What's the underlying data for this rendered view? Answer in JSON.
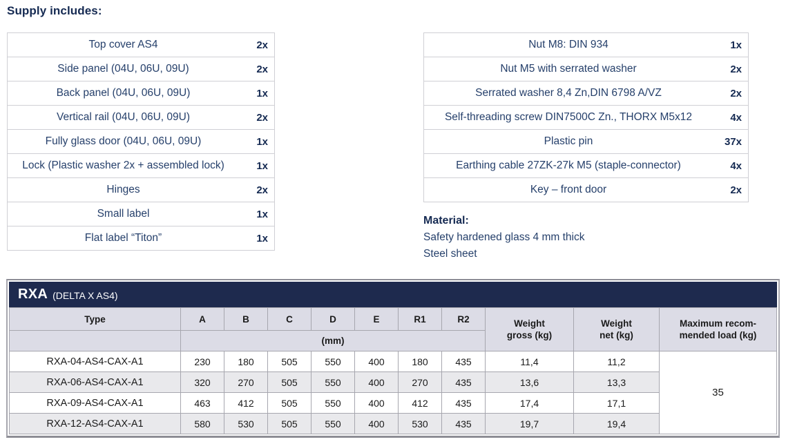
{
  "page": {
    "heading": "Supply includes:"
  },
  "supply_left": {
    "rows": [
      {
        "label": "Top cover AS4",
        "qty": "2x"
      },
      {
        "label": "Side panel (04U, 06U, 09U)",
        "qty": "2x"
      },
      {
        "label": "Back panel (04U, 06U, 09U)",
        "qty": "1x"
      },
      {
        "label": "Vertical rail (04U, 06U, 09U)",
        "qty": "2x"
      },
      {
        "label": "Fully glass door (04U, 06U, 09U)",
        "qty": "1x"
      },
      {
        "label": "Lock (Plastic washer 2x + assembled lock)",
        "qty": "1x"
      },
      {
        "label": "Hinges",
        "qty": "2x"
      },
      {
        "label": "Small label",
        "qty": "1x"
      },
      {
        "label": "Flat label “Titon”",
        "qty": "1x"
      }
    ]
  },
  "supply_right": {
    "rows": [
      {
        "label": "Nut M8: DIN 934",
        "qty": "1x"
      },
      {
        "label": "Nut M5 with serrated washer",
        "qty": "2x"
      },
      {
        "label": "Serrated washer 8,4 Zn,DIN 6798 A/VZ",
        "qty": "2x"
      },
      {
        "label": "Self-threading screw DIN7500C Zn., THORX M5x12",
        "qty": "4x"
      },
      {
        "label": "Plastic pin",
        "qty": "37x"
      },
      {
        "label": "Earthing cable 27ZK-27k M5 (staple-connector)",
        "qty": "4x"
      },
      {
        "label": "Key – front door",
        "qty": "2x"
      }
    ]
  },
  "material": {
    "heading": "Material:",
    "lines": [
      "Safety hardened glass 4 mm thick",
      "Steel sheet"
    ]
  },
  "spec_table": {
    "title": "RXA",
    "subtitle": "(DELTA X AS4)",
    "columns": [
      "Type",
      "A",
      "B",
      "C",
      "D",
      "E",
      "R1",
      "R2"
    ],
    "unit_label": "(mm)",
    "weight_gross_header": {
      "line1": "Weight",
      "line2": "gross (kg)"
    },
    "weight_net_header": {
      "line1": "Weight",
      "line2": "net (kg)"
    },
    "max_load_header": {
      "line1": "Maximum recom-",
      "line2": "mended load (kg)"
    },
    "rows": [
      {
        "type": "RXA-04-AS4-CAX-A1",
        "a": "230",
        "b": "180",
        "c": "505",
        "d": "550",
        "e": "400",
        "r1": "180",
        "r2": "435",
        "weight_gross": "11,4",
        "weight_net": "11,2"
      },
      {
        "type": "RXA-06-AS4-CAX-A1",
        "a": "320",
        "b": "270",
        "c": "505",
        "d": "550",
        "e": "400",
        "r1": "270",
        "r2": "435",
        "weight_gross": "13,6",
        "weight_net": "13,3"
      },
      {
        "type": "RXA-09-AS4-CAX-A1",
        "a": "463",
        "b": "412",
        "c": "505",
        "d": "550",
        "e": "400",
        "r1": "412",
        "r2": "435",
        "weight_gross": "17,4",
        "weight_net": "17,1"
      },
      {
        "type": "RXA-12-AS4-CAX-A1",
        "a": "580",
        "b": "530",
        "c": "505",
        "d": "550",
        "e": "400",
        "r1": "530",
        "r2": "435",
        "weight_gross": "19,7",
        "weight_net": "19,4"
      }
    ],
    "max_load_value": "35"
  },
  "colors": {
    "accent_navy": "#1e2a4e",
    "text_navy": "#26406b",
    "bold_navy": "#152a52",
    "header_bg": "#dcdce6",
    "alt_row_bg": "#e9e9ec",
    "table_border": "#a6a6ae"
  }
}
